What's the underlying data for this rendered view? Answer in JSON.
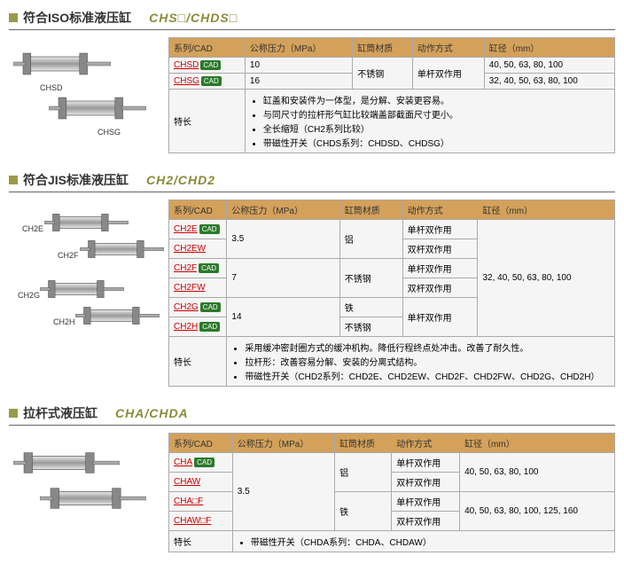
{
  "sections": [
    {
      "title_zh": "符合ISO标准液压缸",
      "title_en": "CHS□/CHDS□",
      "headers": [
        "系列/CAD",
        "公称压力（MPa）",
        "缸筒材质",
        "动作方式",
        "缸径（mm）"
      ],
      "rows": [
        {
          "series": "CHSD",
          "cad": true,
          "pressure": "10",
          "material": "不锈钢",
          "material_rowspan": 2,
          "action": "单杆双作用",
          "action_rowspan": 2,
          "bore": "40, 50, 63, 80, 100"
        },
        {
          "series": "CHSG",
          "cad": true,
          "pressure": "16",
          "bore": "32, 40, 50, 63, 80, 100"
        }
      ],
      "feature_label": "特长",
      "features": [
        "缸盖和安装件为一体型，是分解、安装更容易。",
        "与同尺寸的拉杆形气缸比较端盖部截面尺寸更小。",
        "全长缩短（CH2系列比较）",
        "带磁性开关（CHDS系列：CHDSD、CHDSG）"
      ],
      "img_labels": [
        "CHSD",
        "CHSG"
      ]
    },
    {
      "title_zh": "符合JIS标准液压缸",
      "title_en": "CH2/CHD2",
      "headers": [
        "系列/CAD",
        "公称压力（MPa）",
        "缸筒材质",
        "动作方式",
        "缸径（mm）"
      ],
      "rows": [
        {
          "series": "CH2E",
          "cad": true,
          "pressure": "3.5",
          "pressure_rowspan": 2,
          "material": "铝",
          "material_rowspan": 2,
          "action": "单杆双作用",
          "bore": "32, 40, 50, 63, 80, 100",
          "bore_rowspan": 6
        },
        {
          "series": "CH2EW",
          "cad": false,
          "action": "双杆双作用"
        },
        {
          "series": "CH2F",
          "cad": true,
          "pressure": "7",
          "pressure_rowspan": 2,
          "material": "不锈钢",
          "material_rowspan": 2,
          "action": "单杆双作用"
        },
        {
          "series": "CH2FW",
          "cad": false,
          "action": "双杆双作用"
        },
        {
          "series": "CH2G",
          "cad": true,
          "pressure": "14",
          "pressure_rowspan": 2,
          "material": "铁",
          "action": "单杆双作用",
          "action_rowspan": 2
        },
        {
          "series": "CH2H",
          "cad": true,
          "material": "不锈钢"
        }
      ],
      "feature_label": "特长",
      "features": [
        "采用缓冲密封圈方式的缓冲机构。降低行程终点处冲击。改善了耐久性。",
        "拉杆形：改善容易分解、安装的分离式结构。",
        "带磁性开关（CHD2系列：CHD2E、CHD2EW、CHD2F、CHD2FW、CHD2G、CHD2H）"
      ],
      "img_labels": [
        "CH2E",
        "CH2F",
        "CH2G",
        "CH2H"
      ]
    },
    {
      "title_zh": "拉杆式液压缸",
      "title_en": "CHA/CHDA",
      "headers": [
        "系列/CAD",
        "公称压力（MPa）",
        "缸筒材质",
        "动作方式",
        "缸径（mm）"
      ],
      "rows": [
        {
          "series": "CHA",
          "cad": true,
          "pressure": "3.5",
          "pressure_rowspan": 4,
          "material": "铝",
          "material_rowspan": 2,
          "action": "单杆双作用",
          "bore": "40, 50, 63, 80, 100",
          "bore_rowspan": 2
        },
        {
          "series": "CHAW",
          "cad": false,
          "action": "双杆双作用"
        },
        {
          "series": "CHA□F",
          "cad": false,
          "material": "铁",
          "material_rowspan": 2,
          "action": "单杆双作用",
          "bore": "40, 50, 63, 80, 100, 125, 160",
          "bore_rowspan": 2
        },
        {
          "series": "CHAW□F",
          "cad": false,
          "action": "双杆双作用"
        }
      ],
      "feature_label": "特长",
      "features": [
        "带磁性开关（CHDA系列：CHDA、CHDAW）"
      ],
      "img_labels": []
    }
  ],
  "cad_text": "CAD"
}
